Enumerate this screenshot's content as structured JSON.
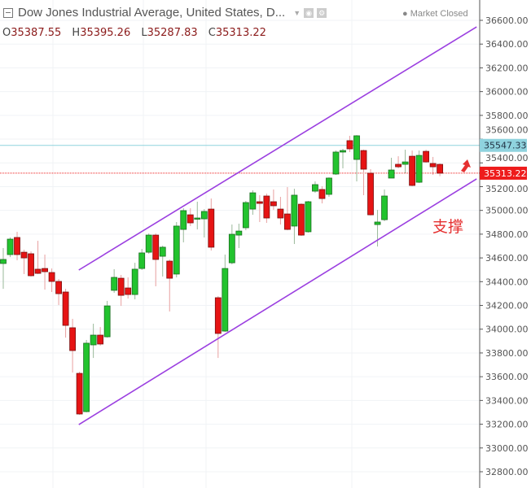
{
  "header": {
    "title": "Dow Jones Industrial Average, United States, D...",
    "market_status": "Market Closed",
    "ohlc": [
      {
        "label": "O",
        "value": "35387.55"
      },
      {
        "label": "H",
        "value": "35395.26"
      },
      {
        "label": "L",
        "value": "35287.83"
      },
      {
        "label": "C",
        "value": "35313.22"
      }
    ],
    "icons": [
      "collapse-icon",
      "chevron-down-icon",
      "eye-icon",
      "gear-icon"
    ]
  },
  "annotation": {
    "text": "支撑",
    "color": "#e53030"
  },
  "chart_data": {
    "type": "candlestick",
    "ylim": [
      32700,
      36700
    ],
    "yticks": [
      "36600.00",
      "36400.00",
      "36200.00",
      "36000.00",
      "35800.00",
      "35600.00",
      "35400.00",
      "35200.00",
      "35000.00",
      "34800.00",
      "34600.00",
      "34400.00",
      "34200.00",
      "34000.00",
      "33800.00",
      "33600.00",
      "33400.00",
      "33200.00",
      "33000.00",
      "32800.00"
    ],
    "colors": {
      "up": "#22c32e",
      "down": "#e61414",
      "channel": "#9b3fe0"
    },
    "candles_ohlc": [
      [
        34553,
        34683,
        34340,
        34587
      ],
      [
        34628,
        34772,
        34607,
        34758
      ],
      [
        34772,
        34820,
        34580,
        34628
      ],
      [
        34648,
        34669,
        34464,
        34600
      ],
      [
        34635,
        34655,
        34443,
        34450
      ],
      [
        34505,
        34744,
        34464,
        34470
      ],
      [
        34511,
        34628,
        34333,
        34484
      ],
      [
        34477,
        34511,
        34313,
        34402
      ],
      [
        34402,
        34422,
        34203,
        34299
      ],
      [
        34313,
        34340,
        33929,
        34032
      ],
      [
        34012,
        34087,
        33635,
        33820
      ],
      [
        33628,
        33642,
        33279,
        33286
      ],
      [
        33306,
        33909,
        33300,
        33882
      ],
      [
        33868,
        34046,
        33758,
        33950
      ],
      [
        33950,
        34018,
        33861,
        33875
      ],
      [
        33936,
        34238,
        33929,
        34196
      ],
      [
        34327,
        34505,
        34306,
        34436
      ],
      [
        34429,
        34457,
        34196,
        34285
      ],
      [
        34347,
        34436,
        34258,
        34292
      ],
      [
        34292,
        34559,
        34251,
        34505
      ],
      [
        34511,
        34676,
        34498,
        34642
      ],
      [
        34648,
        34806,
        34635,
        34792
      ],
      [
        34792,
        34806,
        34361,
        34587
      ],
      [
        34614,
        34703,
        34443,
        34690
      ],
      [
        34573,
        34587,
        34149,
        34429
      ],
      [
        34464,
        34902,
        34436,
        34868
      ],
      [
        34840,
        35018,
        34731,
        34998
      ],
      [
        34963,
        35018,
        34868,
        34895
      ],
      [
        34929,
        35073,
        34840,
        34936
      ],
      [
        34929,
        35011,
        34772,
        34991
      ],
      [
        35011,
        35100,
        34662,
        34690
      ],
      [
        34265,
        34278,
        33758,
        33964
      ],
      [
        33984,
        34628,
        33977,
        34511
      ],
      [
        34559,
        34881,
        34546,
        34799
      ],
      [
        34792,
        34888,
        34683,
        34826
      ],
      [
        34854,
        35080,
        34833,
        35066
      ],
      [
        35011,
        35169,
        34963,
        35148
      ],
      [
        35073,
        35128,
        34902,
        35059
      ],
      [
        35121,
        35141,
        34895,
        34936
      ],
      [
        35073,
        35176,
        35004,
        35039
      ],
      [
        35011,
        35114,
        34881,
        34936
      ],
      [
        34970,
        35196,
        34833,
        34840
      ],
      [
        34868,
        35182,
        34717,
        35128
      ],
      [
        35052,
        35059,
        34785,
        34792
      ],
      [
        34820,
        35080,
        34813,
        35073
      ],
      [
        35162,
        35244,
        35148,
        35217
      ],
      [
        35176,
        35203,
        35059,
        35100
      ],
      [
        35135,
        35278,
        35114,
        35272
      ],
      [
        35306,
        35504,
        35299,
        35491
      ],
      [
        35491,
        35518,
        35354,
        35504
      ],
      [
        35587,
        35628,
        35491,
        35518
      ],
      [
        35429,
        35634,
        35244,
        35628
      ],
      [
        35504,
        35511,
        35128,
        35347
      ],
      [
        35313,
        35347,
        34957,
        34963
      ],
      [
        34881,
        35004,
        34696,
        34902
      ],
      [
        34922,
        35176,
        34909,
        35121
      ],
      [
        35272,
        35443,
        35272,
        35340
      ],
      [
        35388,
        35456,
        35354,
        35367
      ],
      [
        35388,
        35511,
        35313,
        35408
      ],
      [
        35456,
        35504,
        35203,
        35210
      ],
      [
        35237,
        35504,
        35231,
        35463
      ],
      [
        35497,
        35511,
        35402,
        35408
      ],
      [
        35395,
        35450,
        35299,
        35367
      ],
      [
        35387.55,
        35395.26,
        35287.83,
        35313.22
      ]
    ],
    "channel_lines": [
      {
        "name": "",
        "from": {
          "bar": 10.9,
          "price": 34498
        },
        "to": {
          "bar": 68.3,
          "price": 36545
        }
      },
      {
        "name": "",
        "from": {
          "bar": 10.9,
          "price": 33197
        },
        "to": {
          "bar": 68.3,
          "price": 35265
        }
      }
    ],
    "price_lines": [
      {
        "value": 35547.33,
        "label": "35547.33",
        "color": "#8fd3de",
        "style": "solid"
      },
      {
        "value": 35313.22,
        "label": "35313.22",
        "color": "#ee1c1c",
        "style": "dotted"
      }
    ]
  }
}
